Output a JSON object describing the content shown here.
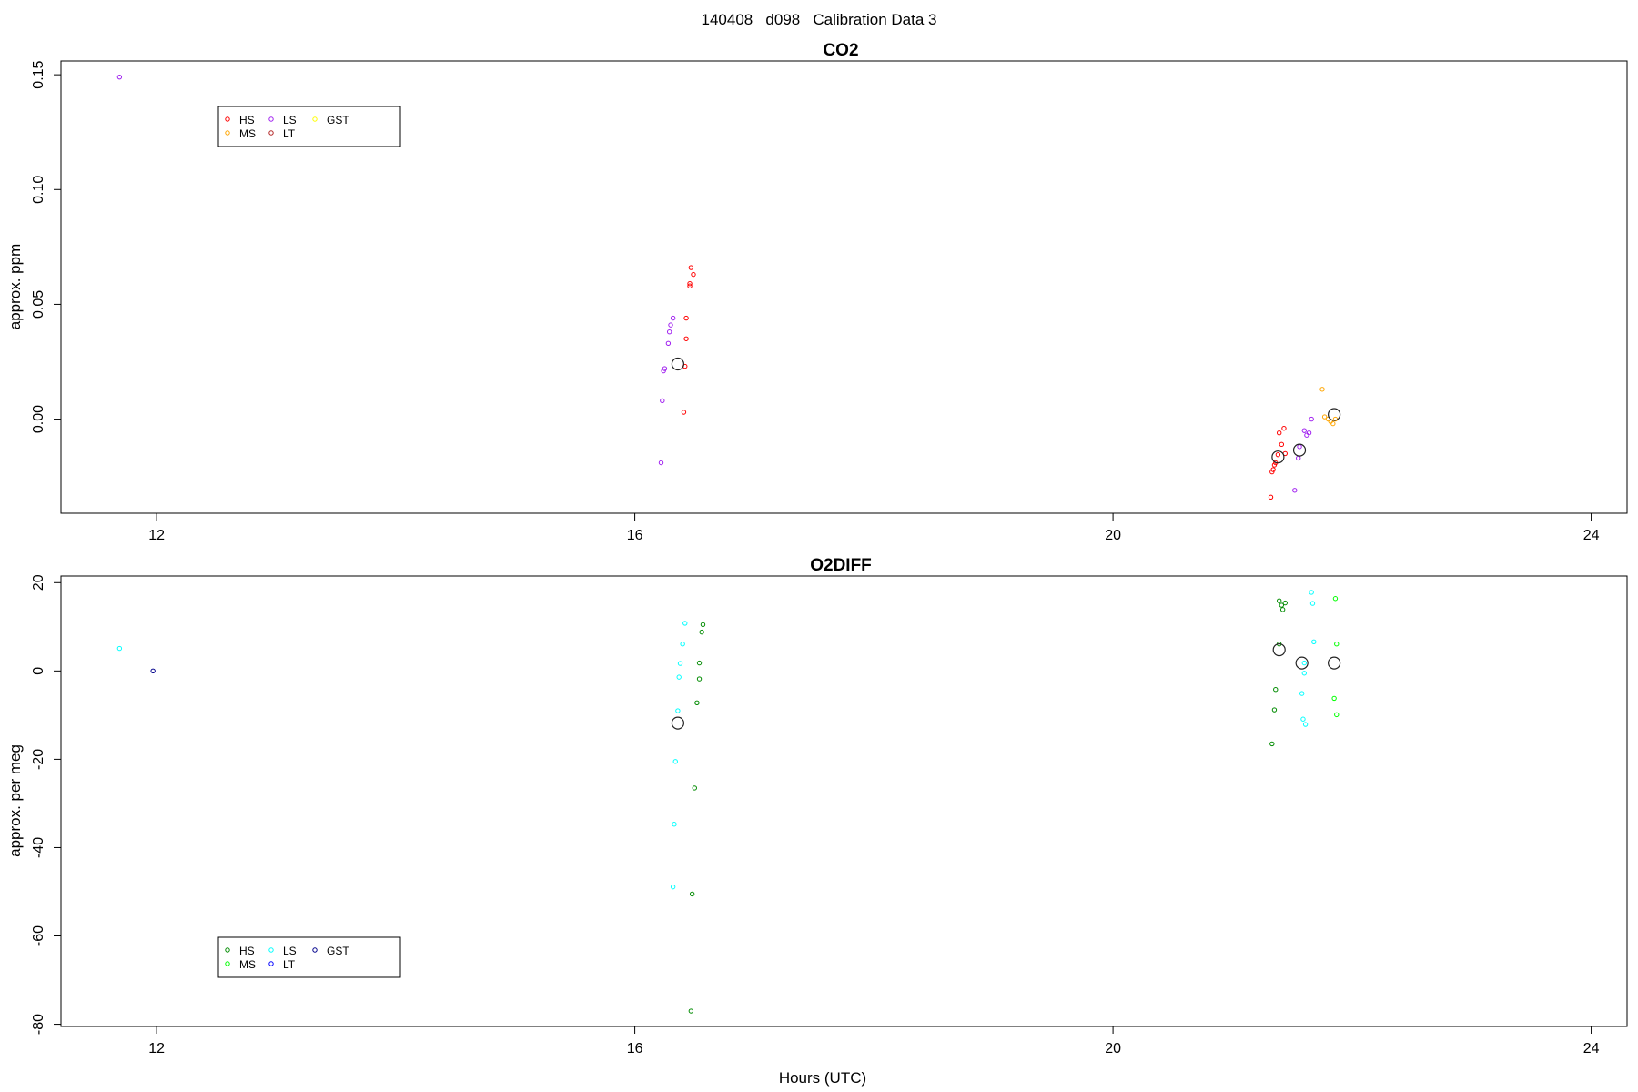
{
  "figure_title": "140408   d098   Calibration Data 3",
  "xlabel": "Hours (UTC)",
  "chart_data": [
    {
      "type": "scatter",
      "title": "CO2",
      "xlabel": "",
      "ylabel": "approx. ppm",
      "xlim": [
        11.2,
        24.3
      ],
      "ylim": [
        -0.041,
        0.156
      ],
      "xticks": [
        "12",
        "16",
        "20",
        "24"
      ],
      "xtick_values": [
        12,
        16,
        20,
        24
      ],
      "yticks": [
        "0.00",
        "0.05",
        "0.10",
        "0.15"
      ],
      "ytick_values": [
        0.0,
        0.05,
        0.1,
        0.15
      ],
      "legend": {
        "placement": "top-left",
        "entries": [
          {
            "label": "HS",
            "color": "#ff0000"
          },
          {
            "label": "MS",
            "color": "#ffa500"
          },
          {
            "label": "LS",
            "color": "#a020f0"
          },
          {
            "label": "LT",
            "color": "#b22222"
          },
          {
            "label": "GST",
            "color": "#ffff00"
          }
        ]
      },
      "series": [
        {
          "name": "HS",
          "color": "#ff0000",
          "points": [
            [
              16.47,
              0.066
            ],
            [
              16.49,
              0.063
            ],
            [
              16.46,
              0.059
            ],
            [
              16.46,
              0.058
            ],
            [
              16.43,
              0.044
            ],
            [
              16.43,
              0.035
            ],
            [
              16.42,
              0.023
            ],
            [
              16.41,
              0.003
            ],
            [
              21.38,
              -0.0155
            ],
            [
              21.39,
              -0.006
            ],
            [
              21.43,
              -0.004
            ],
            [
              21.41,
              -0.011
            ],
            [
              21.36,
              -0.019
            ],
            [
              21.35,
              -0.02
            ],
            [
              21.34,
              -0.022
            ],
            [
              21.33,
              -0.023
            ],
            [
              21.32,
              -0.034
            ],
            [
              21.44,
              -0.015
            ]
          ]
        },
        {
          "name": "MS",
          "color": "#ffa500",
          "points": [
            [
              21.75,
              0.013
            ],
            [
              21.77,
              0.001
            ],
            [
              21.8,
              0.0
            ],
            [
              21.82,
              -0.001
            ],
            [
              21.84,
              -0.002
            ],
            [
              21.86,
              0.0
            ]
          ]
        },
        {
          "name": "LS",
          "color": "#a020f0",
          "points": [
            [
              11.69,
              0.149
            ],
            [
              16.32,
              0.044
            ],
            [
              16.3,
              0.041
            ],
            [
              16.29,
              0.038
            ],
            [
              16.28,
              0.033
            ],
            [
              16.25,
              0.022
            ],
            [
              16.24,
              0.021
            ],
            [
              16.23,
              0.008
            ],
            [
              16.22,
              -0.019
            ],
            [
              21.66,
              0.0
            ],
            [
              21.64,
              -0.006
            ],
            [
              21.62,
              -0.007
            ],
            [
              21.6,
              -0.005
            ],
            [
              21.56,
              -0.012
            ],
            [
              21.55,
              -0.017
            ],
            [
              21.52,
              -0.031
            ]
          ]
        },
        {
          "name": "LT",
          "color": "#b22222",
          "points": []
        },
        {
          "name": "GST",
          "color": "#ffff00",
          "points": []
        }
      ],
      "mean_points": [
        [
          16.36,
          0.024
        ],
        [
          21.38,
          -0.0165
        ],
        [
          21.56,
          -0.0135
        ],
        [
          21.85,
          0.002
        ]
      ]
    },
    {
      "type": "scatter",
      "title": "O2DIFF",
      "xlabel": "Hours (UTC)",
      "ylabel": "approx. per meg",
      "xlim": [
        11.2,
        24.3
      ],
      "ylim": [
        -80.5,
        21.5
      ],
      "xticks": [
        "12",
        "16",
        "20",
        "24"
      ],
      "xtick_values": [
        12,
        16,
        20,
        24
      ],
      "yticks": [
        "-80",
        "-60",
        "-40",
        "-20",
        "0",
        "20"
      ],
      "ytick_values": [
        -80,
        -60,
        -40,
        -20,
        0,
        20
      ],
      "legend": {
        "placement": "bottom-left",
        "entries": [
          {
            "label": "HS",
            "color": "#008b00"
          },
          {
            "label": "MS",
            "color": "#00ff00"
          },
          {
            "label": "LS",
            "color": "#00ffff"
          },
          {
            "label": "LT",
            "color": "#0000ff"
          },
          {
            "label": "GST",
            "color": "#00008b"
          }
        ]
      },
      "series": [
        {
          "name": "HS",
          "color": "#008b00",
          "points": [
            [
              16.57,
              10.5
            ],
            [
              16.56,
              8.8
            ],
            [
              16.54,
              1.8
            ],
            [
              16.54,
              -1.8
            ],
            [
              16.52,
              -7.2
            ],
            [
              16.5,
              -26.5
            ],
            [
              16.48,
              -50.5
            ],
            [
              16.47,
              -77.0
            ],
            [
              21.39,
              15.9
            ],
            [
              21.41,
              14.9
            ],
            [
              21.42,
              13.9
            ],
            [
              21.44,
              15.4
            ],
            [
              21.39,
              6.1
            ],
            [
              21.36,
              -4.2
            ],
            [
              21.35,
              -8.8
            ],
            [
              21.33,
              -16.5
            ]
          ]
        },
        {
          "name": "MS",
          "color": "#00ff00",
          "points": [
            [
              21.86,
              16.4
            ],
            [
              21.87,
              6.1
            ],
            [
              21.85,
              -6.2
            ],
            [
              21.87,
              -9.9
            ]
          ]
        },
        {
          "name": "LS",
          "color": "#00ffff",
          "points": [
            [
              11.69,
              5.1
            ],
            [
              16.42,
              10.8
            ],
            [
              16.4,
              6.1
            ],
            [
              16.38,
              1.7
            ],
            [
              16.37,
              -1.4
            ],
            [
              16.36,
              -9.0
            ],
            [
              16.34,
              -20.5
            ],
            [
              16.33,
              -34.7
            ],
            [
              16.32,
              -48.9
            ],
            [
              21.66,
              17.8
            ],
            [
              21.67,
              15.3
            ],
            [
              21.68,
              6.6
            ],
            [
              21.6,
              1.8
            ],
            [
              21.58,
              -5.1
            ],
            [
              21.59,
              -10.9
            ],
            [
              21.61,
              -12.1
            ],
            [
              21.6,
              -0.5
            ]
          ]
        },
        {
          "name": "LT",
          "color": "#0000ff",
          "points": []
        },
        {
          "name": "GST",
          "color": "#00008b",
          "points": [
            [
              11.97,
              0.0
            ]
          ]
        }
      ],
      "mean_points": [
        [
          16.36,
          -11.8
        ],
        [
          21.39,
          4.8
        ],
        [
          21.58,
          1.8
        ],
        [
          21.85,
          1.8
        ]
      ]
    }
  ]
}
